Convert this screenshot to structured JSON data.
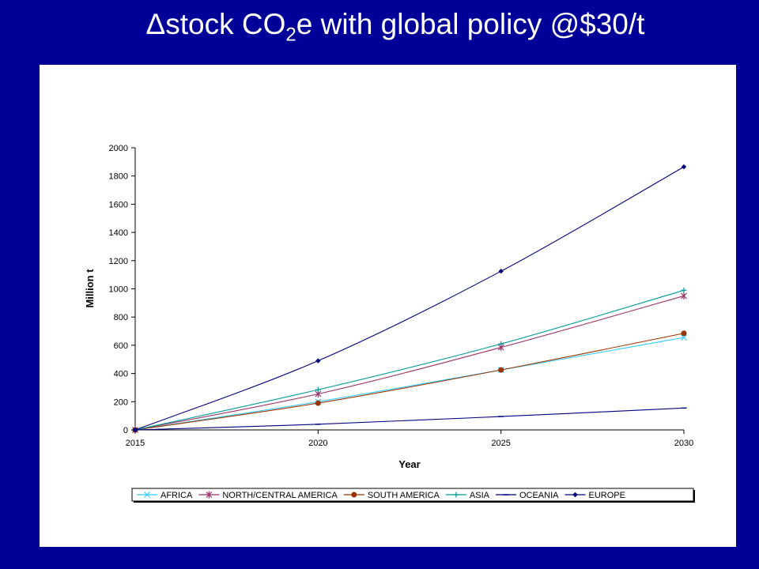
{
  "slide": {
    "title_pre": "Δstock CO",
    "title_sub": "2",
    "title_post": "e with global policy @$30/t"
  },
  "chart_data": {
    "type": "line",
    "title": "",
    "xlabel": "Year",
    "ylabel": "Million t",
    "x": [
      2015,
      2020,
      2025,
      2030
    ],
    "xlim": [
      2015,
      2030
    ],
    "ylim": [
      0,
      2000
    ],
    "yticks": [
      0,
      200,
      400,
      600,
      800,
      1000,
      1200,
      1400,
      1600,
      1800,
      2000
    ],
    "grid": false,
    "legend_position": "bottom",
    "series": [
      {
        "name": "AFRICA",
        "values": [
          0,
          200,
          425,
          655
        ],
        "color": "#33ccff",
        "marker": "x"
      },
      {
        "name": "NORTH/CENTRAL AMERICA",
        "values": [
          0,
          255,
          585,
          950
        ],
        "color": "#993366",
        "marker": "star"
      },
      {
        "name": "SOUTH AMERICA",
        "values": [
          0,
          190,
          425,
          685
        ],
        "color": "#993300",
        "marker": "circle"
      },
      {
        "name": "ASIA",
        "values": [
          0,
          285,
          610,
          990
        ],
        "color": "#009999",
        "marker": "plus"
      },
      {
        "name": "OCEANIA",
        "values": [
          0,
          40,
          95,
          155
        ],
        "color": "#000080",
        "marker": "dash"
      },
      {
        "name": "EUROPE",
        "values": [
          0,
          490,
          1125,
          1865
        ],
        "color": "#000080",
        "marker": "diamond"
      }
    ]
  }
}
